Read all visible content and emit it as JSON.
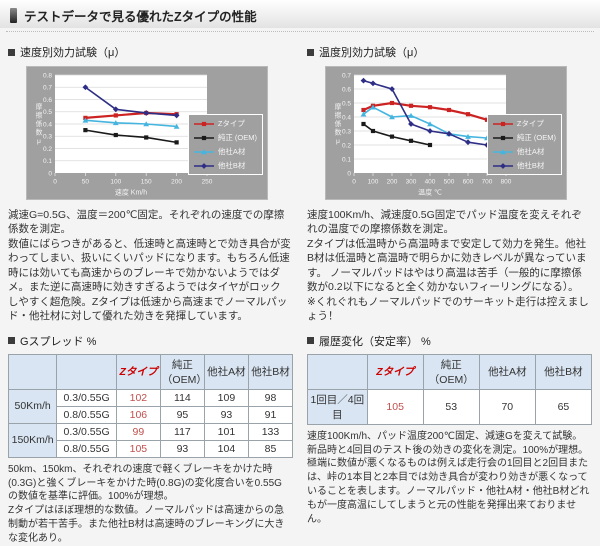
{
  "page": {
    "title": "テストデータで見る優れたZタイプの性能"
  },
  "colors": {
    "panel_gray": "#a0a0a0",
    "accent_red": "#cc2222",
    "oem_black": "#1a1a1a",
    "companyA_blue": "#45b5e0",
    "companyB_navy": "#2e2e86",
    "table_header_blue": "#d9e5f2",
    "value_red": "#c0504d"
  },
  "sections": {
    "speed": {
      "title": "速度別効力試験（μ）",
      "desc": "減速G=0.5G、温度＝200℃固定。それぞれの速度での摩擦係数を測定。\n数値にばらつきがあると、低速時と高速時とで効き具合が変わってしまい、扱いにくいパッドになります。もちろん低速時には効いても高速からのブレーキで効かないようではダメ。また逆に高速時に効きすぎるようではタイヤがロックしやすく超危険。Zタイプは低速から高速までノーマルパッド・他社材に対して優れた効きを発揮しています。"
    },
    "temp": {
      "title": "温度別効力試験（μ）",
      "desc": "速度100Km/h、減速度0.5G固定でパッド温度を変えそれぞれの温度での摩擦係数を測定。\nZタイプは低温時から高温時まで安定して効力を発生。他社B材は低温時と高温時で明らかに効きレベルが異なっています。 ノーマルパッドはやはり高温は苦手（一般的に摩擦係数が0.2以下になると全く効かないフィーリングになる）。\n※くれぐれもノーマルパッドでのサーキット走行は控えましょう！"
    },
    "gspread": {
      "title": "Gスプレッド %",
      "note": "50km、150km、それぞれの速度で軽くブレーキをかけた時(0.3G)と強くブレーキをかけた時(0.8G)の変化度合いを0.55Gの数値を基準に評価。100%が理想。\nZタイプはほぼ理想的な数値。ノーマルパッドは高速からの急制動が若干苦手。また他社B材は高速時のブレーキングに大きな変化あり。"
    },
    "history": {
      "title": "履歴変化（安定率） %",
      "note": "速度100Km/h、パッド温度200℃固定、減速Gを変えて試験。\n新品時と4回目のテスト後の効きの変化を測定。100%が理想。\n極端に数値が悪くなるものは例えば走行会の1回目と2回目または、峠の1本目と2本目では効き具合が変わり効きが悪くなっていることを表します。ノーマルパッド・他社A材・他社B材どれもが一度高温にしてしまうと元の性能を発揮出来ておりません。"
    }
  },
  "chart_data": [
    {
      "type": "line",
      "title": "速度別効力試験（μ）",
      "xlabel": "速度 Km/h",
      "ylabel": "摩擦係数μ",
      "xlim": [
        0,
        250
      ],
      "ylim": [
        0,
        0.8
      ],
      "xticks": [
        0,
        50,
        100,
        150,
        200,
        250
      ],
      "yticks": [
        0,
        0.1,
        0.2,
        0.3,
        0.4,
        0.5,
        0.6,
        0.7,
        0.8
      ],
      "grid": true,
      "legend_position": "right",
      "series": [
        {
          "name": "Zタイプ",
          "color": "#cc2222",
          "marker": "square",
          "width": 2.2,
          "x": [
            50,
            100,
            150,
            200
          ],
          "y": [
            0.45,
            0.47,
            0.49,
            0.48
          ]
        },
        {
          "name": "純正 (OEM)",
          "color": "#1a1a1a",
          "marker": "square",
          "width": 1.6,
          "x": [
            50,
            100,
            150,
            200
          ],
          "y": [
            0.35,
            0.31,
            0.29,
            0.25
          ]
        },
        {
          "name": "他社A材",
          "color": "#45b5e0",
          "marker": "triangle",
          "width": 1.6,
          "x": [
            50,
            100,
            150,
            200
          ],
          "y": [
            0.43,
            0.41,
            0.4,
            0.38
          ]
        },
        {
          "name": "他社B材",
          "color": "#2e2e86",
          "marker": "diamond",
          "width": 1.6,
          "x": [
            50,
            100,
            150,
            200
          ],
          "y": [
            0.7,
            0.52,
            0.49,
            0.47
          ]
        }
      ]
    },
    {
      "type": "line",
      "title": "温度別効力試験（μ）",
      "xlabel": "温度 ℃",
      "ylabel": "摩擦係数μ",
      "xlim": [
        0,
        800
      ],
      "ylim": [
        0,
        0.7
      ],
      "xticks": [
        0,
        100,
        200,
        300,
        400,
        500,
        600,
        700,
        800
      ],
      "yticks": [
        0,
        0.1,
        0.2,
        0.3,
        0.4,
        0.5,
        0.6,
        0.7
      ],
      "grid": true,
      "legend_position": "right",
      "series": [
        {
          "name": "Zタイプ",
          "color": "#cc2222",
          "marker": "square",
          "width": 2.2,
          "x": [
            50,
            100,
            200,
            300,
            400,
            500,
            600,
            700
          ],
          "y": [
            0.45,
            0.48,
            0.5,
            0.48,
            0.47,
            0.45,
            0.42,
            0.38
          ]
        },
        {
          "name": "純正 (OEM)",
          "color": "#1a1a1a",
          "marker": "square",
          "width": 1.6,
          "x": [
            50,
            100,
            200,
            300,
            400
          ],
          "y": [
            0.35,
            0.3,
            0.26,
            0.23,
            0.2
          ]
        },
        {
          "name": "他社A材",
          "color": "#45b5e0",
          "marker": "triangle",
          "width": 1.6,
          "x": [
            50,
            100,
            200,
            300,
            400,
            500,
            600,
            700
          ],
          "y": [
            0.42,
            0.47,
            0.4,
            0.41,
            0.35,
            0.28,
            0.26,
            0.25
          ]
        },
        {
          "name": "他社B材",
          "color": "#2e2e86",
          "marker": "diamond",
          "width": 1.6,
          "x": [
            50,
            100,
            200,
            300,
            400,
            500,
            600,
            700
          ],
          "y": [
            0.66,
            0.64,
            0.6,
            0.35,
            0.3,
            0.28,
            0.22,
            0.2
          ]
        }
      ]
    }
  ],
  "tables": {
    "gspread": {
      "headers": [
        "",
        "",
        "Zタイプ",
        "純正（OEM）",
        "他社A材",
        "他社B材"
      ],
      "row_groups": [
        {
          "label": "50Km/h",
          "rows": [
            {
              "cond": "0.3/0.55G",
              "values": [
                102,
                114,
                109,
                98
              ]
            },
            {
              "cond": "0.8/0.55G",
              "values": [
                106,
                95,
                93,
                91
              ]
            }
          ]
        },
        {
          "label": "150Km/h",
          "rows": [
            {
              "cond": "0.3/0.55G",
              "values": [
                99,
                117,
                101,
                133
              ]
            },
            {
              "cond": "0.8/0.55G",
              "values": [
                105,
                93,
                104,
                85
              ]
            }
          ]
        }
      ]
    },
    "history": {
      "headers": [
        "",
        "Zタイプ",
        "純正（OEM）",
        "他社A材",
        "他社B材"
      ],
      "rows": [
        {
          "label": "1回目／4回目",
          "values": [
            105,
            53,
            70,
            65
          ]
        }
      ]
    }
  }
}
